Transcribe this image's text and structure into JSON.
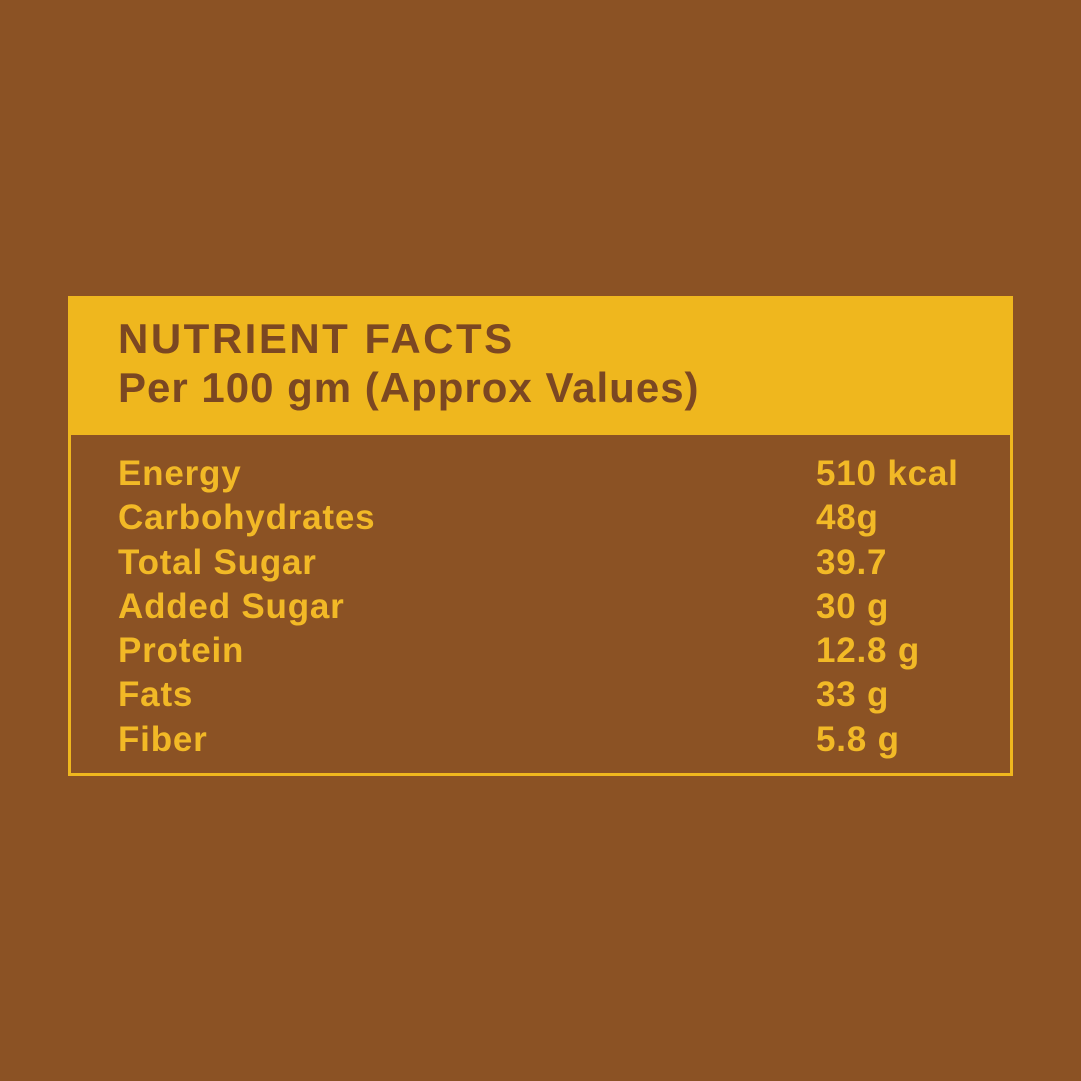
{
  "label": {
    "title": "NUTRIENT FACTS",
    "subtitle": "Per 100 gm (Approx Values)",
    "rows": [
      {
        "name": "Energy",
        "value": "510 kcal"
      },
      {
        "name": "Carbohydrates",
        "value": "48g"
      },
      {
        "name": "Total Sugar",
        "value": "39.7"
      },
      {
        "name": "Added Sugar",
        "value": "30 g"
      },
      {
        "name": "Protein",
        "value": "12.8 g"
      },
      {
        "name": "Fats",
        "value": "33 g"
      },
      {
        "name": "Fiber",
        "value": "5.8 g"
      }
    ]
  },
  "colors": {
    "background_brown": "#8B5224",
    "accent_yellow": "#EFB71E",
    "header_text_brown": "#7B4722",
    "row_text_yellow": "#F2B926"
  }
}
